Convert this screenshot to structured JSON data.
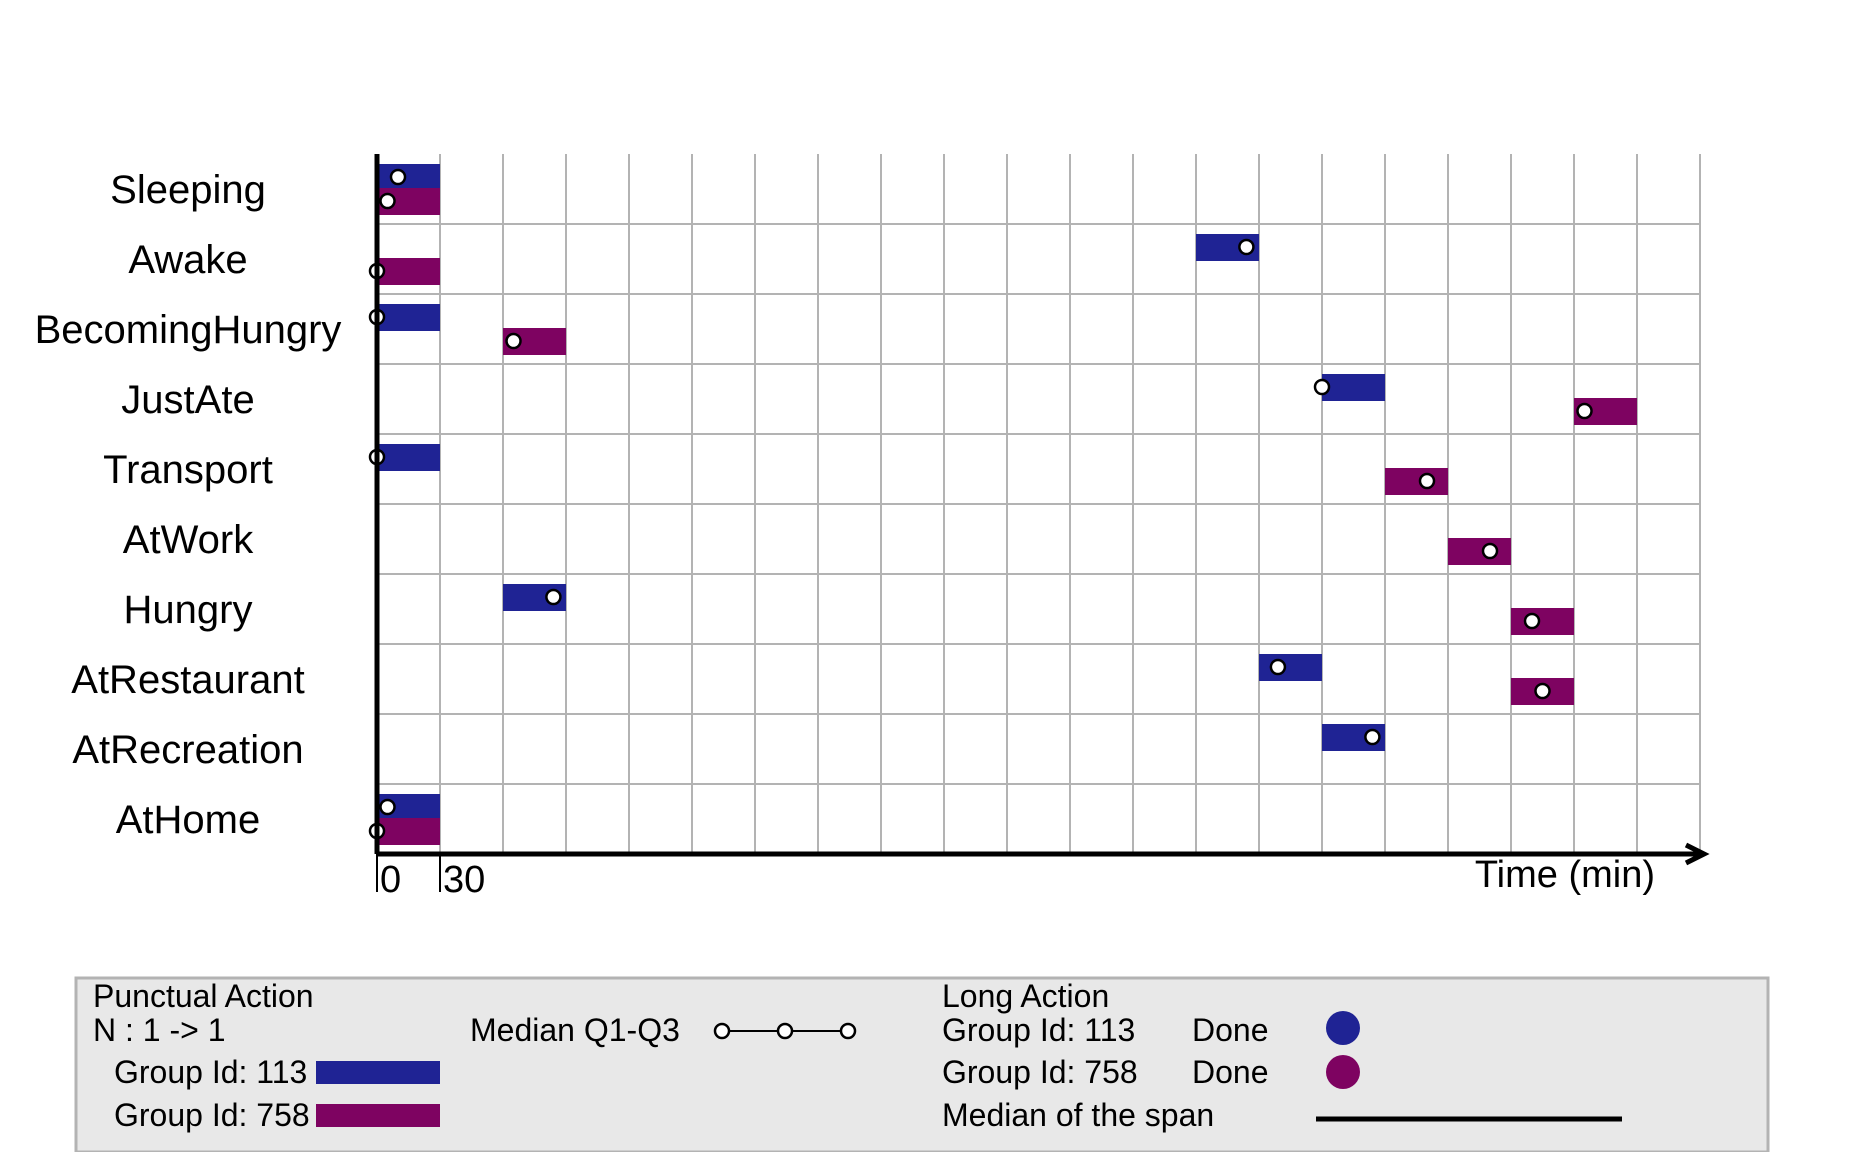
{
  "chart_data": {
    "type": "timeline",
    "categories": [
      "Sleeping",
      "Awake",
      "BecomingHungry",
      "JustAte",
      "Transport",
      "AtWork",
      "Hungry",
      "AtRestaurant",
      "AtRecreation",
      "AtHome"
    ],
    "x_unit_minutes": 30,
    "x_range_intervals": [
      0,
      21
    ],
    "xlabel": "Time (min)",
    "x_tick_labels": [
      "0",
      "30"
    ],
    "grid": true,
    "colors": {
      "group_113": "#1f2394",
      "group_758": "#7e0361"
    },
    "series": [
      {
        "name": "Group Id: 113",
        "bars": [
          {
            "category": "Sleeping",
            "start": 0,
            "end": 30,
            "median": 10
          },
          {
            "category": "Awake",
            "start": 390,
            "end": 420,
            "median": 414
          },
          {
            "category": "BecomingHungry",
            "start": 0,
            "end": 30,
            "median": 0
          },
          {
            "category": "JustAte",
            "start": 450,
            "end": 480,
            "median": 450
          },
          {
            "category": "Transport",
            "start": 0,
            "end": 30,
            "median": 0
          },
          {
            "category": "Hungry",
            "start": 60,
            "end": 90,
            "median": 84
          },
          {
            "category": "AtRestaurant",
            "start": 420,
            "end": 450,
            "median": 429
          },
          {
            "category": "AtRecreation",
            "start": 450,
            "end": 480,
            "median": 474
          },
          {
            "category": "AtHome",
            "start": 0,
            "end": 30,
            "median": 5
          }
        ]
      },
      {
        "name": "Group Id: 758",
        "bars": [
          {
            "category": "Sleeping",
            "start": 0,
            "end": 30,
            "median": 5
          },
          {
            "category": "Awake",
            "start": 0,
            "end": 30,
            "median": 0
          },
          {
            "category": "BecomingHungry",
            "start": 60,
            "end": 90,
            "median": 65
          },
          {
            "category": "JustAte",
            "start": 570,
            "end": 600,
            "median": 575
          },
          {
            "category": "Transport",
            "start": 480,
            "end": 510,
            "median": 500
          },
          {
            "category": "AtWork",
            "start": 510,
            "end": 540,
            "median": 530
          },
          {
            "category": "Hungry",
            "start": 540,
            "end": 570,
            "median": 550
          },
          {
            "category": "AtRestaurant",
            "start": 540,
            "end": 570,
            "median": 555
          },
          {
            "category": "AtHome",
            "start": 0,
            "end": 30,
            "median": 0
          }
        ]
      }
    ],
    "legend": {
      "punctual_title": "Punctual Action",
      "punctual_n": "N : 1 -> 1",
      "punctual_group_1": "Group Id: 113",
      "punctual_group_2": "Group Id: 758",
      "median_label": "Median Q1-Q3",
      "long_title": "Long Action",
      "long_group_1": "Group Id: 113",
      "long_group_2": "Group Id: 758",
      "done_1": "Done",
      "done_2": "Done",
      "span_label": "Median of the span"
    }
  }
}
